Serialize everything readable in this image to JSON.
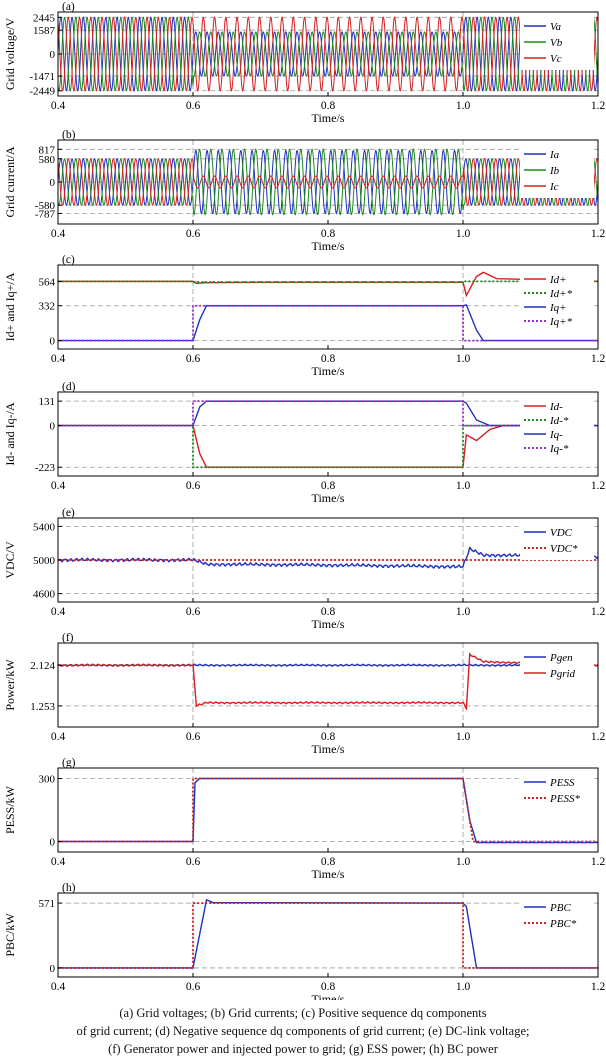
{
  "caption": [
    "(a) Grid voltages; (b) Grid currents; (c) Positive sequence dq components",
    "of grid current; (d) Negative sequence dq components of grid current; (e) DC-link voltage;",
    "(f) Generator power and injected power to grid; (g) ESS power; (h) BC power"
  ],
  "chart_data": [
    {
      "panel": "(a)",
      "type": "line",
      "xlabel": "Time/s",
      "ylabel": "Grid voltage/V",
      "xlim": [
        0.4,
        1.2
      ],
      "xticks": [
        "0.4",
        "0.6",
        "0.8",
        "1.0",
        "1.2"
      ],
      "ylim": [
        -2800,
        2800
      ],
      "yticks": [
        2445,
        1587,
        0,
        -1471,
        -2449
      ],
      "x": [
        0.4,
        0.6,
        0.601,
        1.0,
        1.001,
        1.2
      ],
      "series": [
        {
          "name": "Va",
          "color": "#1f2fbf",
          "amplitude": [
            2445,
            2445,
            1471,
            1471,
            2445,
            2445
          ],
          "phase_deg": 0
        },
        {
          "name": "Vb",
          "color": "#1e8a1e",
          "amplitude": [
            2445,
            2445,
            1471,
            1471,
            2445,
            2445
          ],
          "phase_deg": -120
        },
        {
          "name": "Vc",
          "color": "#d42020",
          "amplitude": [
            2445,
            2445,
            2449,
            2449,
            2445,
            2445
          ],
          "phase_deg": 120
        }
      ],
      "frequency_hz": 60
    },
    {
      "panel": "(b)",
      "type": "line",
      "xlabel": "Time/s",
      "ylabel": "Grid current/A",
      "xlim": [
        0.4,
        1.2
      ],
      "xticks": [
        "0.4",
        "0.6",
        "0.8",
        "1.0",
        "1.2"
      ],
      "ylim": [
        -1050,
        1050
      ],
      "yticks": [
        817,
        580,
        0,
        -580,
        -787
      ],
      "x": [
        0.4,
        0.6,
        0.601,
        1.0,
        1.001,
        1.2
      ],
      "series": [
        {
          "name": "Ia",
          "color": "#1f2fbf",
          "amplitude": [
            580,
            580,
            787,
            787,
            580,
            580
          ],
          "phase_deg": 0
        },
        {
          "name": "Ib",
          "color": "#1e8a1e",
          "amplitude": [
            580,
            580,
            817,
            817,
            580,
            580
          ],
          "phase_deg": -120
        },
        {
          "name": "Ic",
          "color": "#d42020",
          "amplitude": [
            580,
            580,
            150,
            150,
            580,
            580
          ],
          "phase_deg": 120
        }
      ],
      "frequency_hz": 60
    },
    {
      "panel": "(c)",
      "type": "line",
      "xlabel": "Time/s",
      "ylabel": "Id+ and Iq+/A",
      "xlim": [
        0.4,
        1.2
      ],
      "xticks": [
        "0.4",
        "0.6",
        "0.8",
        "1.0",
        "1.2"
      ],
      "ylim": [
        -80,
        720
      ],
      "yticks": [
        564,
        332,
        0
      ],
      "series": [
        {
          "name": "Id+",
          "color": "#d42020",
          "style": "solid",
          "points": [
            [
              0.4,
              564
            ],
            [
              0.6,
              564
            ],
            [
              0.605,
              545
            ],
            [
              0.62,
              552
            ],
            [
              0.7,
              555
            ],
            [
              1.0,
              556
            ],
            [
              1.005,
              430
            ],
            [
              1.02,
              610
            ],
            [
              1.03,
              650
            ],
            [
              1.05,
              590
            ],
            [
              1.2,
              564
            ]
          ]
        },
        {
          "name": "Id+*",
          "color": "#1e8a1e",
          "style": "dotted",
          "points": [
            [
              0.4,
              564
            ],
            [
              0.6,
              564
            ],
            [
              0.6,
              556
            ],
            [
              1.0,
              556
            ],
            [
              1.0,
              564
            ],
            [
              1.2,
              564
            ]
          ]
        },
        {
          "name": "Iq+",
          "color": "#1f2fbf",
          "style": "solid",
          "points": [
            [
              0.4,
              0
            ],
            [
              0.6,
              0
            ],
            [
              0.61,
              200
            ],
            [
              0.62,
              332
            ],
            [
              1.0,
              332
            ],
            [
              1.005,
              340
            ],
            [
              1.02,
              100
            ],
            [
              1.03,
              0
            ],
            [
              1.2,
              0
            ]
          ]
        },
        {
          "name": "Iq+*",
          "color": "#9a2bd0",
          "style": "dotted",
          "points": [
            [
              0.4,
              0
            ],
            [
              0.6,
              0
            ],
            [
              0.6,
              332
            ],
            [
              1.0,
              332
            ],
            [
              1.0,
              0
            ],
            [
              1.2,
              0
            ]
          ]
        }
      ]
    },
    {
      "panel": "(d)",
      "type": "line",
      "xlabel": "Time/s",
      "ylabel": "Id- and Iq-/A",
      "xlim": [
        0.4,
        1.2
      ],
      "xticks": [
        "0.4",
        "0.6",
        "0.8",
        "1.0",
        "1.2"
      ],
      "ylim": [
        -270,
        180
      ],
      "yticks": [
        131,
        0,
        -223
      ],
      "series": [
        {
          "name": "Id-",
          "color": "#d42020",
          "style": "solid",
          "points": [
            [
              0.4,
              0
            ],
            [
              0.6,
              0
            ],
            [
              0.61,
              -150
            ],
            [
              0.62,
              -223
            ],
            [
              1.0,
              -223
            ],
            [
              1.005,
              -50
            ],
            [
              1.02,
              -80
            ],
            [
              1.04,
              -20
            ],
            [
              1.06,
              0
            ],
            [
              1.2,
              0
            ]
          ]
        },
        {
          "name": "Id-*",
          "color": "#1e8a1e",
          "style": "dotted",
          "points": [
            [
              0.4,
              0
            ],
            [
              0.6,
              0
            ],
            [
              0.6,
              -223
            ],
            [
              1.0,
              -223
            ],
            [
              1.0,
              0
            ],
            [
              1.2,
              0
            ]
          ]
        },
        {
          "name": "Iq-",
          "color": "#1f2fbf",
          "style": "solid",
          "points": [
            [
              0.4,
              0
            ],
            [
              0.6,
              0
            ],
            [
              0.61,
              100
            ],
            [
              0.62,
              131
            ],
            [
              1.0,
              131
            ],
            [
              1.005,
              120
            ],
            [
              1.02,
              30
            ],
            [
              1.04,
              0
            ],
            [
              1.2,
              0
            ]
          ]
        },
        {
          "name": "Iq-*",
          "color": "#9a2bd0",
          "style": "dotted",
          "points": [
            [
              0.4,
              0
            ],
            [
              0.6,
              0
            ],
            [
              0.6,
              131
            ],
            [
              1.0,
              131
            ],
            [
              1.0,
              0
            ],
            [
              1.2,
              0
            ]
          ]
        }
      ]
    },
    {
      "panel": "(e)",
      "type": "line",
      "xlabel": "Time/s",
      "ylabel": "VDC/V",
      "xlim": [
        0.4,
        1.2
      ],
      "xticks": [
        "0.4",
        "0.6",
        "0.8",
        "1.0",
        "1.2"
      ],
      "ylim": [
        4500,
        5500
      ],
      "yticks": [
        5400,
        5000,
        4600
      ],
      "series": [
        {
          "name": "VDC",
          "color": "#1f2fbf",
          "style": "solid",
          "points": [
            [
              0.4,
              5000
            ],
            [
              0.6,
              5000
            ],
            [
              0.62,
              4950
            ],
            [
              0.8,
              4940
            ],
            [
              1.0,
              4920
            ],
            [
              1.01,
              5130
            ],
            [
              1.03,
              5060
            ],
            [
              1.2,
              5040
            ]
          ],
          "ripple": 20
        },
        {
          "name": "VDC*",
          "color": "#d42020",
          "style": "dotted",
          "points": [
            [
              0.4,
              5000
            ],
            [
              1.2,
              5000
            ]
          ]
        }
      ]
    },
    {
      "panel": "(f)",
      "type": "line",
      "xlabel": "Time/s",
      "ylabel": "Power/kW",
      "xlim": [
        0.4,
        1.2
      ],
      "xticks": [
        "0.4",
        "0.6",
        "0.8",
        "1.0",
        "1.2"
      ],
      "ylim": [
        0.8,
        2.6
      ],
      "yticks": [
        "2.124",
        "1.253"
      ],
      "series": [
        {
          "name": "Pgen",
          "color": "#1f2fbf",
          "style": "solid",
          "points": [
            [
              0.4,
              2.124
            ],
            [
              1.2,
              2.124
            ]
          ],
          "ripple": 0.02
        },
        {
          "name": "Pgrid",
          "color": "#d42020",
          "style": "solid",
          "points": [
            [
              0.4,
              2.124
            ],
            [
              0.6,
              2.124
            ],
            [
              0.605,
              1.253
            ],
            [
              0.62,
              1.32
            ],
            [
              1.0,
              1.32
            ],
            [
              1.005,
              1.2
            ],
            [
              1.01,
              2.35
            ],
            [
              1.03,
              2.2
            ],
            [
              1.2,
              2.124
            ]
          ],
          "ripple": 0.02
        }
      ]
    },
    {
      "panel": "(g)",
      "type": "line",
      "xlabel": "Time/s",
      "ylabel": "PESS/kW",
      "xlim": [
        0.4,
        1.2
      ],
      "xticks": [
        "0.4",
        "0.6",
        "0.8",
        "1.0",
        "1.2"
      ],
      "ylim": [
        -50,
        350
      ],
      "yticks": [
        300,
        0
      ],
      "series": [
        {
          "name": "PESS",
          "color": "#1f2fbf",
          "style": "solid",
          "points": [
            [
              0.4,
              0
            ],
            [
              0.6,
              0
            ],
            [
              0.603,
              280
            ],
            [
              0.61,
              300
            ],
            [
              1.0,
              300
            ],
            [
              1.01,
              100
            ],
            [
              1.02,
              -5
            ],
            [
              1.2,
              -5
            ]
          ]
        },
        {
          "name": "PESS*",
          "color": "#d42020",
          "style": "dotted",
          "points": [
            [
              0.4,
              0
            ],
            [
              0.6,
              0
            ],
            [
              0.6,
              300
            ],
            [
              1.0,
              300
            ],
            [
              1.015,
              0
            ],
            [
              1.2,
              0
            ]
          ]
        }
      ]
    },
    {
      "panel": "(h)",
      "type": "line",
      "xlabel": "Time/s",
      "ylabel": "PBC/kW",
      "xlim": [
        0.4,
        1.2
      ],
      "xticks": [
        "0.4",
        "0.6",
        "0.8",
        "1.0",
        "1.2"
      ],
      "ylim": [
        -80,
        660
      ],
      "yticks": [
        571,
        0
      ],
      "series": [
        {
          "name": "PBC",
          "color": "#1f2fbf",
          "style": "solid",
          "points": [
            [
              0.4,
              0
            ],
            [
              0.6,
              0
            ],
            [
              0.62,
              600
            ],
            [
              0.63,
              575
            ],
            [
              1.0,
              571
            ],
            [
              1.005,
              540
            ],
            [
              1.02,
              0
            ],
            [
              1.2,
              0
            ]
          ]
        },
        {
          "name": "PBC*",
          "color": "#d42020",
          "style": "dotted",
          "points": [
            [
              0.4,
              0
            ],
            [
              0.6,
              0
            ],
            [
              0.6,
              571
            ],
            [
              1.0,
              571
            ],
            [
              1.0,
              0
            ],
            [
              1.2,
              0
            ]
          ]
        }
      ]
    }
  ]
}
